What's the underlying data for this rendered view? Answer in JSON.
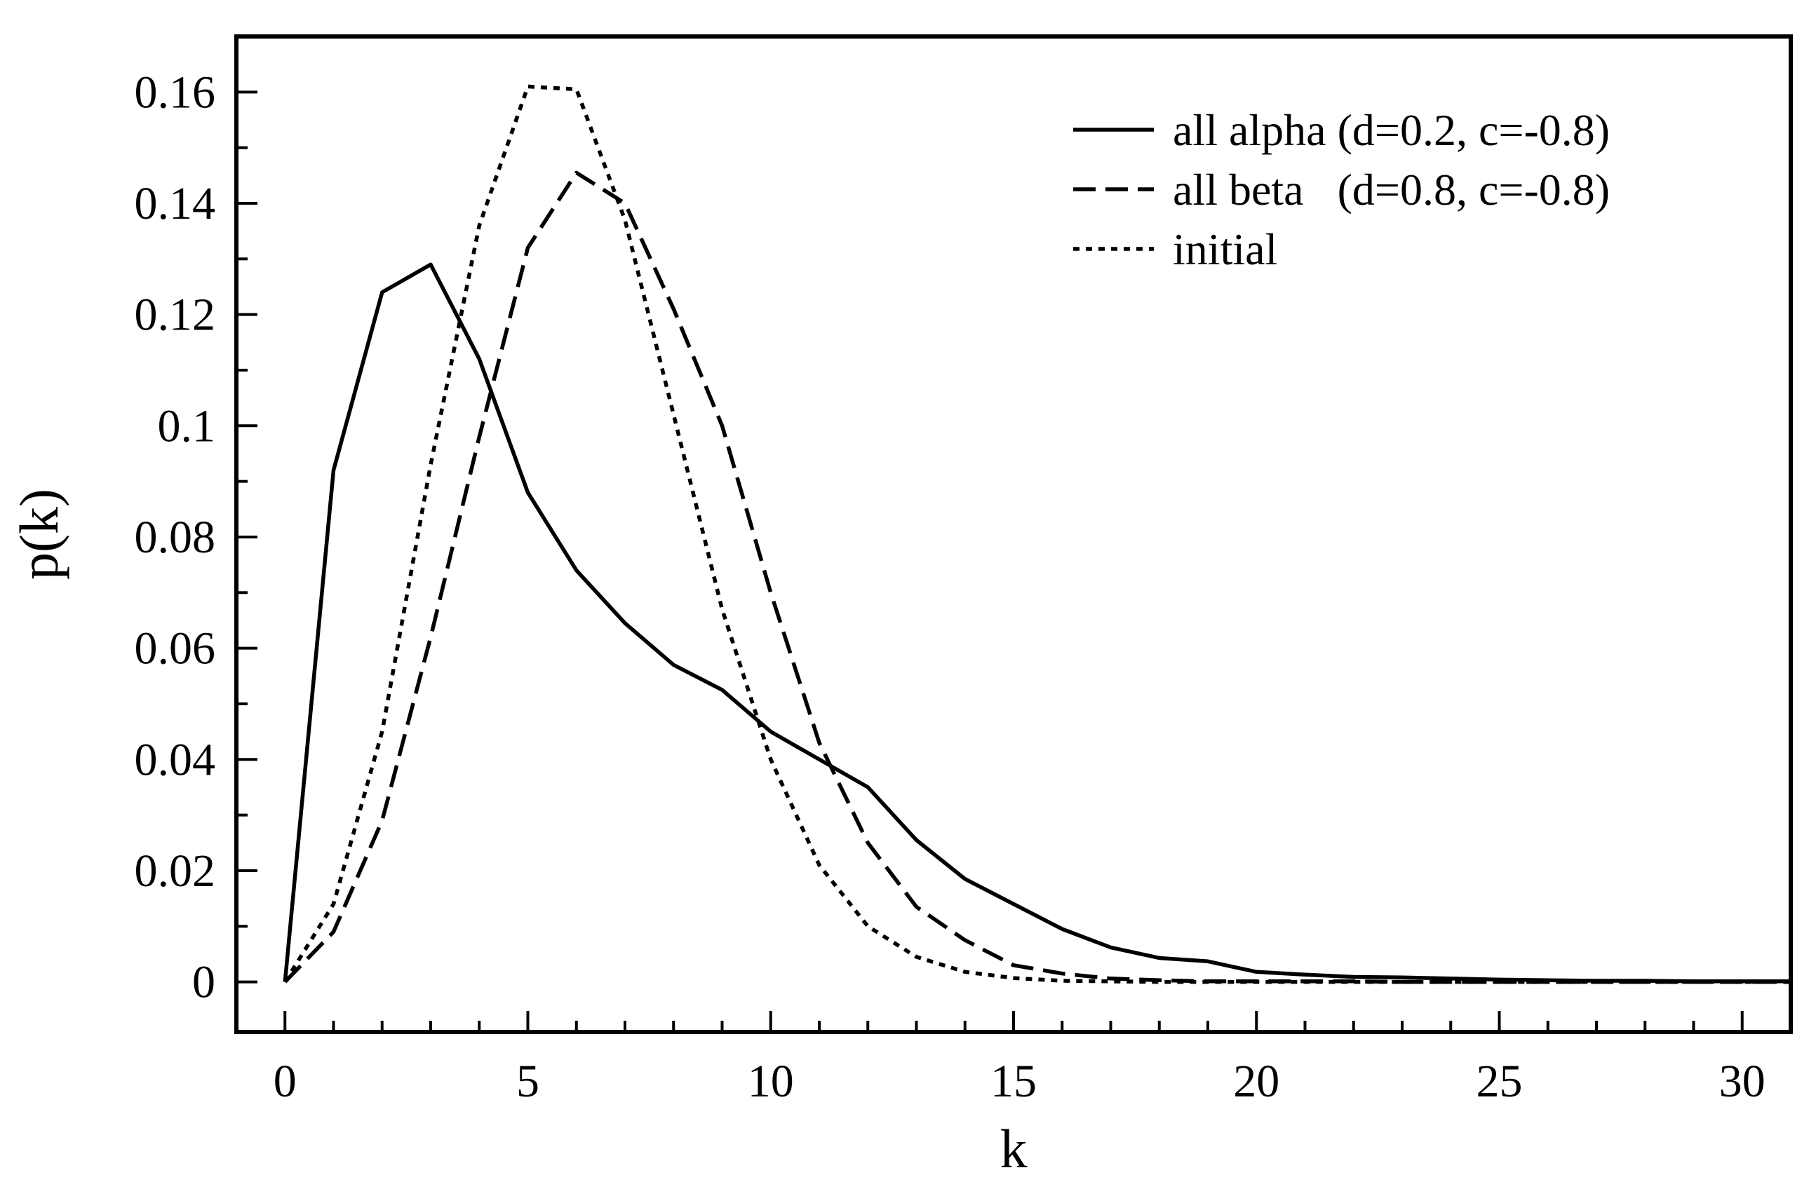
{
  "chart_data": {
    "type": "line",
    "title": "",
    "xlabel": "k",
    "ylabel": "p(k)",
    "xlim": [
      -1,
      31
    ],
    "ylim": [
      -0.009,
      0.17
    ],
    "xticks": [
      0,
      5,
      10,
      15,
      20,
      25,
      30
    ],
    "xtick_labels": [
      "0",
      "5",
      "10",
      "15",
      "20",
      "25",
      "30"
    ],
    "yticks": [
      0,
      0.02,
      0.04,
      0.06,
      0.08,
      0.1,
      0.12,
      0.14,
      0.16
    ],
    "ytick_labels": [
      "0",
      "0.02",
      "0.04",
      "0.06",
      "0.08",
      "0.1",
      "0.12",
      "0.14",
      "0.16"
    ],
    "grid": false,
    "legend_position": "top-right",
    "x": [
      0,
      1,
      2,
      3,
      4,
      5,
      6,
      7,
      8,
      9,
      10,
      11,
      12,
      13,
      14,
      15,
      16,
      17,
      18,
      19,
      20,
      21,
      22,
      23,
      24,
      25,
      26,
      27,
      28,
      29,
      30,
      31
    ],
    "series": [
      {
        "name": "all alpha (d=0.2, c=-0.8)",
        "style": "solid",
        "values": [
          0,
          0.092,
          0.124,
          0.129,
          0.112,
          0.088,
          0.074,
          0.0645,
          0.057,
          0.0525,
          0.045,
          0.04,
          0.035,
          0.0255,
          0.0185,
          0.014,
          0.0095,
          0.0062,
          0.0043,
          0.0037,
          0.0018,
          0.0013,
          0.0009,
          0.0008,
          0.0006,
          0.0004,
          0.0003,
          0.0002,
          0.0002,
          0.0001,
          0.0001,
          0.0001
        ]
      },
      {
        "name": "all beta   (d=0.8, c=-0.8)",
        "style": "dashed",
        "values": [
          0,
          0.009,
          0.029,
          0.062,
          0.098,
          0.132,
          0.1455,
          0.14,
          0.121,
          0.1,
          0.07,
          0.043,
          0.025,
          0.0135,
          0.0075,
          0.003,
          0.0015,
          0.0006,
          0.0003,
          0.0001,
          0.0001,
          0.0001,
          0.0001,
          0,
          0,
          0,
          0,
          0,
          0,
          0,
          0,
          0
        ]
      },
      {
        "name": "initial",
        "style": "dotted",
        "values": [
          0,
          0.014,
          0.045,
          0.093,
          0.136,
          0.161,
          0.1605,
          0.137,
          0.102,
          0.067,
          0.04,
          0.021,
          0.01,
          0.0045,
          0.0018,
          0.0007,
          0.0002,
          0.0001,
          0,
          0,
          0,
          0,
          0,
          0,
          0,
          0,
          0,
          0,
          0,
          0,
          0,
          0
        ]
      }
    ]
  }
}
